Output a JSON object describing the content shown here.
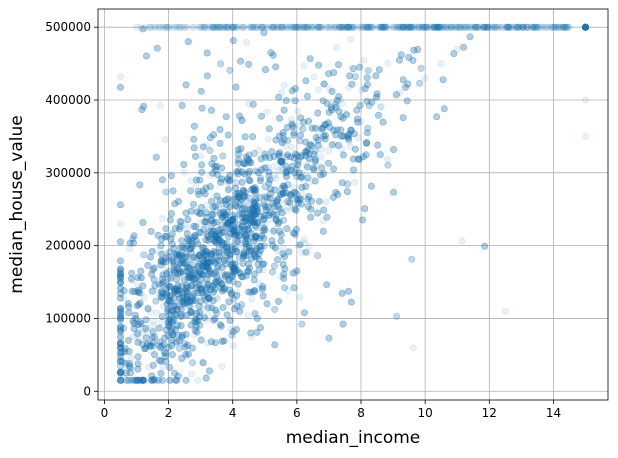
{
  "chart_data": {
    "type": "scatter",
    "title": "",
    "xlabel": "median_income",
    "ylabel": "median_house_value",
    "xlim": [
      -0.2,
      15.7
    ],
    "ylim": [
      -12000,
      525000
    ],
    "x_ticks": [
      0,
      2,
      4,
      6,
      8,
      10,
      12,
      14
    ],
    "x_tick_labels": [
      "0",
      "2",
      "4",
      "6",
      "8",
      "10",
      "12",
      "14"
    ],
    "y_ticks": [
      0,
      100000,
      200000,
      300000,
      400000,
      500000
    ],
    "y_tick_labels": [
      "0",
      "100000",
      "200000",
      "300000",
      "400000",
      "500000"
    ],
    "grid": true,
    "legend": "none",
    "point_color": "#1f77b4",
    "point_alpha": 0.1,
    "x_range_of_points": [
      0.5,
      15.0
    ],
    "y_range_of_points": [
      15000,
      500001
    ],
    "cap_value": 500001,
    "sample_points": {
      "x": [
        0.5,
        0.9,
        1.2,
        1.5,
        1.8,
        2.0,
        2.2,
        2.5,
        2.8,
        3.0,
        3.2,
        3.5,
        3.8,
        4.0,
        4.3,
        4.6,
        5.0,
        5.4,
        5.8,
        6.2,
        6.6,
        7.0,
        7.5,
        8.0,
        8.6,
        9.2,
        10.0,
        10.5,
        11.0,
        12.5,
        15.0,
        15.0,
        15.0
      ],
      "y": [
        60000,
        75000,
        80000,
        90000,
        95000,
        110000,
        120000,
        130000,
        140000,
        150000,
        160000,
        170000,
        180000,
        190000,
        200000,
        210000,
        230000,
        250000,
        270000,
        290000,
        310000,
        330000,
        350000,
        370000,
        390000,
        410000,
        430000,
        450000,
        470000,
        110000,
        500001,
        400000,
        350000
      ]
    }
  }
}
